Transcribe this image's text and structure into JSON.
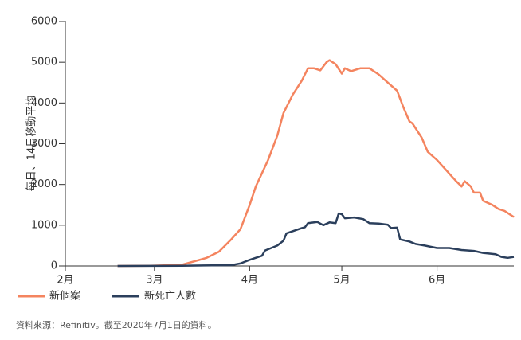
{
  "chart_data": {
    "type": "line",
    "ylabel": "每日、14日移動平均",
    "source": "資料來源：Refinitiv。截至2020年7月1日的資料。",
    "xlim": [
      32,
      178
    ],
    "xticks": [
      {
        "value": 32,
        "label": "2月"
      },
      {
        "value": 61,
        "label": "3月"
      },
      {
        "value": 92,
        "label": "4月"
      },
      {
        "value": 122,
        "label": "5月"
      },
      {
        "value": 153,
        "label": "6月"
      }
    ],
    "ylim": [
      0,
      6000
    ],
    "yticks": [
      0,
      1000,
      2000,
      3000,
      4000,
      5000,
      6000
    ],
    "grid": false,
    "legend": "bottom",
    "series": [
      {
        "name": "新個案",
        "color": "#f4845f",
        "x": [
          49,
          60,
          70,
          78,
          82,
          86,
          89,
          92,
          94,
          98,
          101,
          103,
          106,
          109,
          111,
          113,
          115,
          117,
          118,
          120,
          122,
          123,
          125,
          128,
          131,
          134,
          137,
          140,
          142,
          144,
          145,
          148,
          150,
          153,
          156,
          159,
          161,
          162,
          164,
          165,
          167,
          168,
          171,
          173,
          175,
          178
        ],
        "values": [
          0,
          5,
          30,
          200,
          350,
          650,
          900,
          1500,
          1950,
          2600,
          3200,
          3750,
          4200,
          4550,
          4850,
          4850,
          4800,
          5000,
          5050,
          4950,
          4720,
          4850,
          4780,
          4850,
          4850,
          4700,
          4500,
          4300,
          3900,
          3550,
          3500,
          3150,
          2800,
          2600,
          2350,
          2100,
          1950,
          2080,
          1950,
          1800,
          1800,
          1600,
          1500,
          1400,
          1350,
          1200
        ]
      },
      {
        "name": "新死亡人數",
        "color": "#2b3f5c",
        "x": [
          49,
          70,
          86,
          89,
          92,
          96,
          97,
          101,
          103,
          104,
          109,
          110,
          111,
          114,
          116,
          118,
          120,
          121,
          122,
          123,
          126,
          129,
          131,
          134,
          137,
          138,
          140,
          141,
          144,
          146,
          149,
          153,
          157,
          161,
          165,
          168,
          172,
          174,
          176,
          178
        ],
        "values": [
          0,
          5,
          20,
          60,
          150,
          250,
          380,
          500,
          620,
          800,
          930,
          950,
          1050,
          1080,
          1000,
          1070,
          1050,
          1290,
          1270,
          1170,
          1190,
          1150,
          1050,
          1040,
          1010,
          930,
          940,
          650,
          600,
          540,
          500,
          440,
          440,
          390,
          370,
          320,
          290,
          220,
          200,
          220
        ]
      }
    ]
  }
}
